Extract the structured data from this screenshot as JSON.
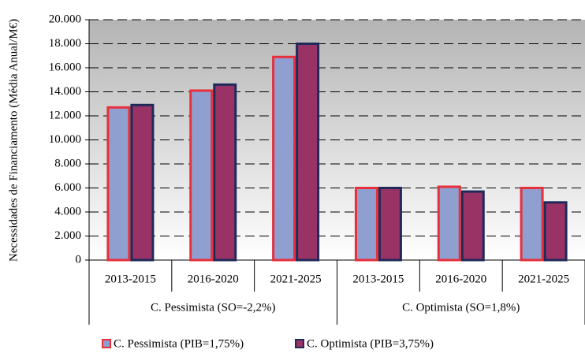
{
  "chart_data": {
    "type": "bar",
    "y_label": "Necessidades de Financiamento (Média Anual/M€)",
    "category_groups": [
      {
        "name": "C. Pessimista (SO=-2,2%)",
        "categories": [
          "2013-2015",
          "2016-2020",
          "2021-2025"
        ]
      },
      {
        "name": "C. Optimista (SO=1,8%)",
        "categories": [
          "2013-2015",
          "2016-2020",
          "2021-2025"
        ]
      }
    ],
    "series": [
      {
        "name": "C. Pessimista (PIB=1,75%)",
        "color": "#8f9fd0",
        "edge_color": "#e8303a",
        "values": [
          12700,
          14100,
          16900,
          6000,
          6100,
          6000
        ]
      },
      {
        "name": "C. Optimista (PIB=3,75%)",
        "color": "#993366",
        "edge_color": "#1f2a5a",
        "values": [
          12900,
          14600,
          18000,
          6000,
          5700,
          4800
        ]
      }
    ],
    "ylim": [
      0,
      20000
    ],
    "yticks": [
      0,
      {
        "value": 2000,
        "label": "2.000"
      },
      {
        "value": 4000,
        "label": "4.000"
      },
      {
        "value": 6000,
        "label": "6.000"
      },
      {
        "value": 8000,
        "label": "8.000"
      },
      {
        "value": 10000,
        "label": "10.000"
      },
      {
        "value": 12000,
        "label": "12.000"
      },
      {
        "value": 14000,
        "label": "14.000"
      },
      {
        "value": 16000,
        "label": "16.000"
      },
      {
        "value": 18000,
        "label": "18.000"
      },
      {
        "value": 20000,
        "label": "20.000"
      }
    ],
    "grid": true
  }
}
